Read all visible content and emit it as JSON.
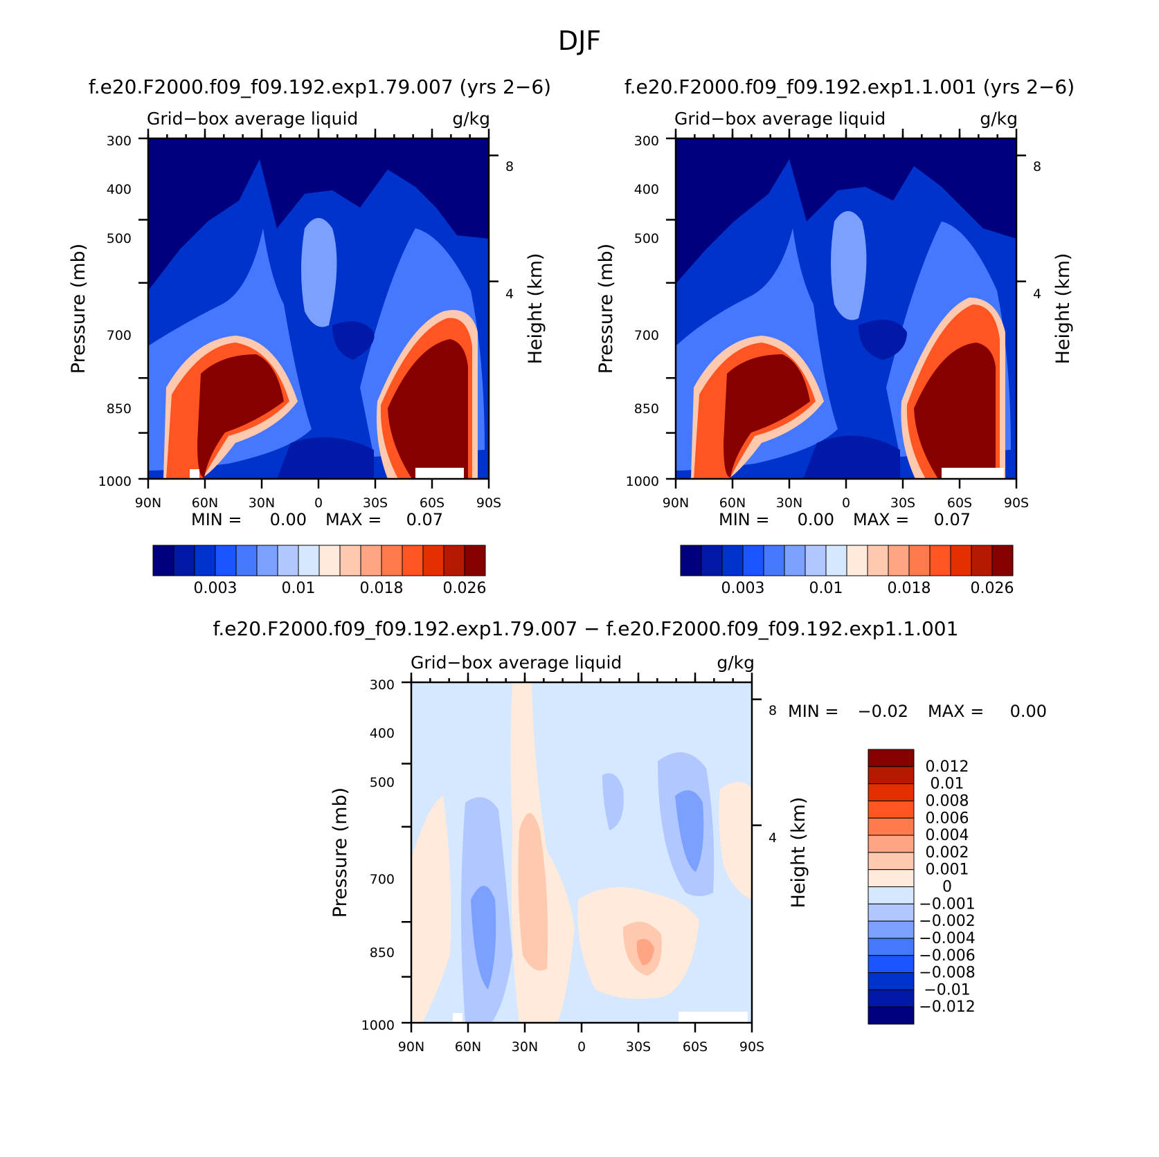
{
  "figure_title": "DJF",
  "colors": {
    "abs_scale": [
      "#00007f",
      "#0019a6",
      "#0033cc",
      "#1a55ff",
      "#4678ff",
      "#7ba0ff",
      "#b0c8ff",
      "#d6e8ff",
      "#ffeadc",
      "#ffc9b0",
      "#ffa584",
      "#ff7b4c",
      "#ff5522",
      "#e23000",
      "#b51a00",
      "#870000"
    ],
    "diff_scale": [
      "#00007f",
      "#0019a6",
      "#0033cc",
      "#1a55ff",
      "#4678ff",
      "#7ba0ff",
      "#b0c8ff",
      "#d6e8ff",
      "#ffeadc",
      "#ffc9b0",
      "#ffa584",
      "#ff7b4c",
      "#ff5522",
      "#e23000",
      "#b51a00",
      "#870000"
    ]
  },
  "chart_data": [
    {
      "type": "heatmap",
      "title": "f.e20.F2000.f09_f09.192.exp1.79.007 (yrs 2−6)",
      "subtitle_left": "Grid−box average liquid",
      "subtitle_right": "g/kg",
      "ylabel": "Pressure (mb)",
      "ylabel_right": "Height (km)",
      "x_ticks": [
        "90N",
        "60N",
        "30N",
        "0",
        "30S",
        "60S",
        "90S"
      ],
      "xlim": [
        90,
        -90
      ],
      "y_ticks": [
        "300",
        "400",
        "500",
        "700",
        "850",
        "1000"
      ],
      "ylim": [
        1000,
        300
      ],
      "y_scale": "log",
      "y_right_ticks": [
        "8",
        "4"
      ],
      "min_label": "MIN =",
      "min_value": "0.00",
      "max_label": "MAX =",
      "max_value": "0.07",
      "colorbar_labels": [
        "0.003",
        "0.01",
        "0.018",
        "0.026"
      ],
      "features": [
        {
          "kind": "low",
          "lat": 30,
          "p": 780
        },
        {
          "kind": "high",
          "lat": 60,
          "p": 850
        },
        {
          "kind": "high",
          "lat": -62,
          "p": 870
        }
      ]
    },
    {
      "type": "heatmap",
      "title": "f.e20.F2000.f09_f09.192.exp1.1.001 (yrs 2−6)",
      "subtitle_left": "Grid−box average liquid",
      "subtitle_right": "g/kg",
      "ylabel": "Pressure (mb)",
      "ylabel_right": "Height (km)",
      "x_ticks": [
        "90N",
        "60N",
        "30N",
        "0",
        "30S",
        "60S",
        "90S"
      ],
      "xlim": [
        90,
        -90
      ],
      "y_ticks": [
        "300",
        "400",
        "500",
        "700",
        "850",
        "1000"
      ],
      "ylim": [
        1000,
        300
      ],
      "y_scale": "log",
      "y_right_ticks": [
        "8",
        "4"
      ],
      "min_label": "MIN =",
      "min_value": "0.00",
      "max_label": "MAX =",
      "max_value": "0.07",
      "colorbar_labels": [
        "0.003",
        "0.01",
        "0.018",
        "0.026"
      ],
      "features": [
        {
          "kind": "high",
          "lat": 60,
          "p": 850
        },
        {
          "kind": "high",
          "lat": -62,
          "p": 850
        }
      ]
    },
    {
      "type": "heatmap",
      "title": "f.e20.F2000.f09_f09.192.exp1.79.007 − f.e20.F2000.f09_f09.192.exp1.1.001",
      "subtitle_left": "Grid−box average liquid",
      "subtitle_right": "g/kg",
      "ylabel": "Pressure (mb)",
      "ylabel_right": "Height (km)",
      "x_ticks": [
        "90N",
        "60N",
        "30N",
        "0",
        "30S",
        "60S",
        "90S"
      ],
      "xlim": [
        90,
        -90
      ],
      "y_ticks": [
        "300",
        "400",
        "500",
        "700",
        "850",
        "1000"
      ],
      "ylim": [
        1000,
        300
      ],
      "y_scale": "log",
      "y_right_ticks": [
        "8",
        "4"
      ],
      "min_label": "MIN =",
      "min_value": "−0.02",
      "max_label": "MAX =",
      "max_value": "0.00",
      "colorbar_labels": [
        "0.012",
        "0.01",
        "0.008",
        "0.006",
        "0.004",
        "0.002",
        "0.001",
        "0",
        "−0.001",
        "−0.002",
        "−0.004",
        "−0.006",
        "−0.008",
        "−0.01",
        "−0.012"
      ]
    }
  ]
}
